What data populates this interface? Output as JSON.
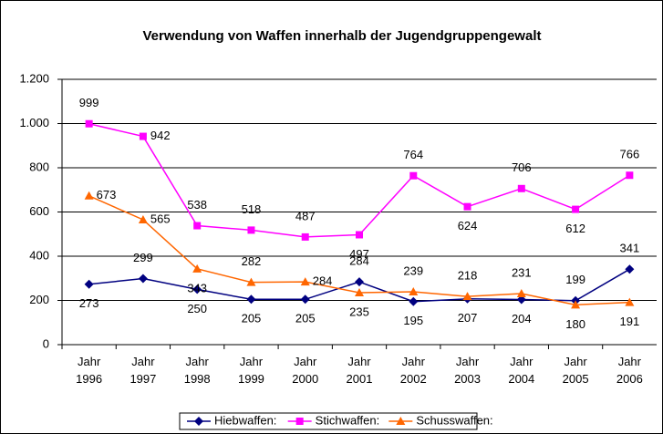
{
  "chart_data": {
    "type": "line",
    "title": "Verwendung von Waffen innerhalb der Jugendgruppengewalt",
    "categories": [
      "Jahr 1996",
      "Jahr 1997",
      "Jahr 1998",
      "Jahr 1999",
      "Jahr 2000",
      "Jahr 2001",
      "Jahr 2002",
      "Jahr 2003",
      "Jahr 2004",
      "Jahr 2005",
      "Jahr 2006"
    ],
    "series": [
      {
        "name": "Hiebwaffen:",
        "color": "#000080",
        "marker": "diamond",
        "values": [
          273,
          299,
          250,
          205,
          205,
          284,
          195,
          207,
          204,
          199,
          341
        ]
      },
      {
        "name": "Stichwaffen:",
        "color": "#ff00ff",
        "marker": "square",
        "values": [
          999,
          942,
          538,
          518,
          487,
          497,
          764,
          624,
          706,
          612,
          766
        ]
      },
      {
        "name": "Schusswaffen:",
        "color": "#ff6600",
        "marker": "triangle",
        "values": [
          673,
          565,
          343,
          282,
          284,
          235,
          239,
          218,
          231,
          180,
          191
        ]
      }
    ],
    "ylim": [
      0,
      1200
    ],
    "yticks": [
      0,
      200,
      400,
      600,
      800,
      {
        "value": 1000,
        "label": "1.000"
      },
      {
        "value": 1200,
        "label": "1.200"
      }
    ],
    "grid": true,
    "legend": "bottom"
  }
}
